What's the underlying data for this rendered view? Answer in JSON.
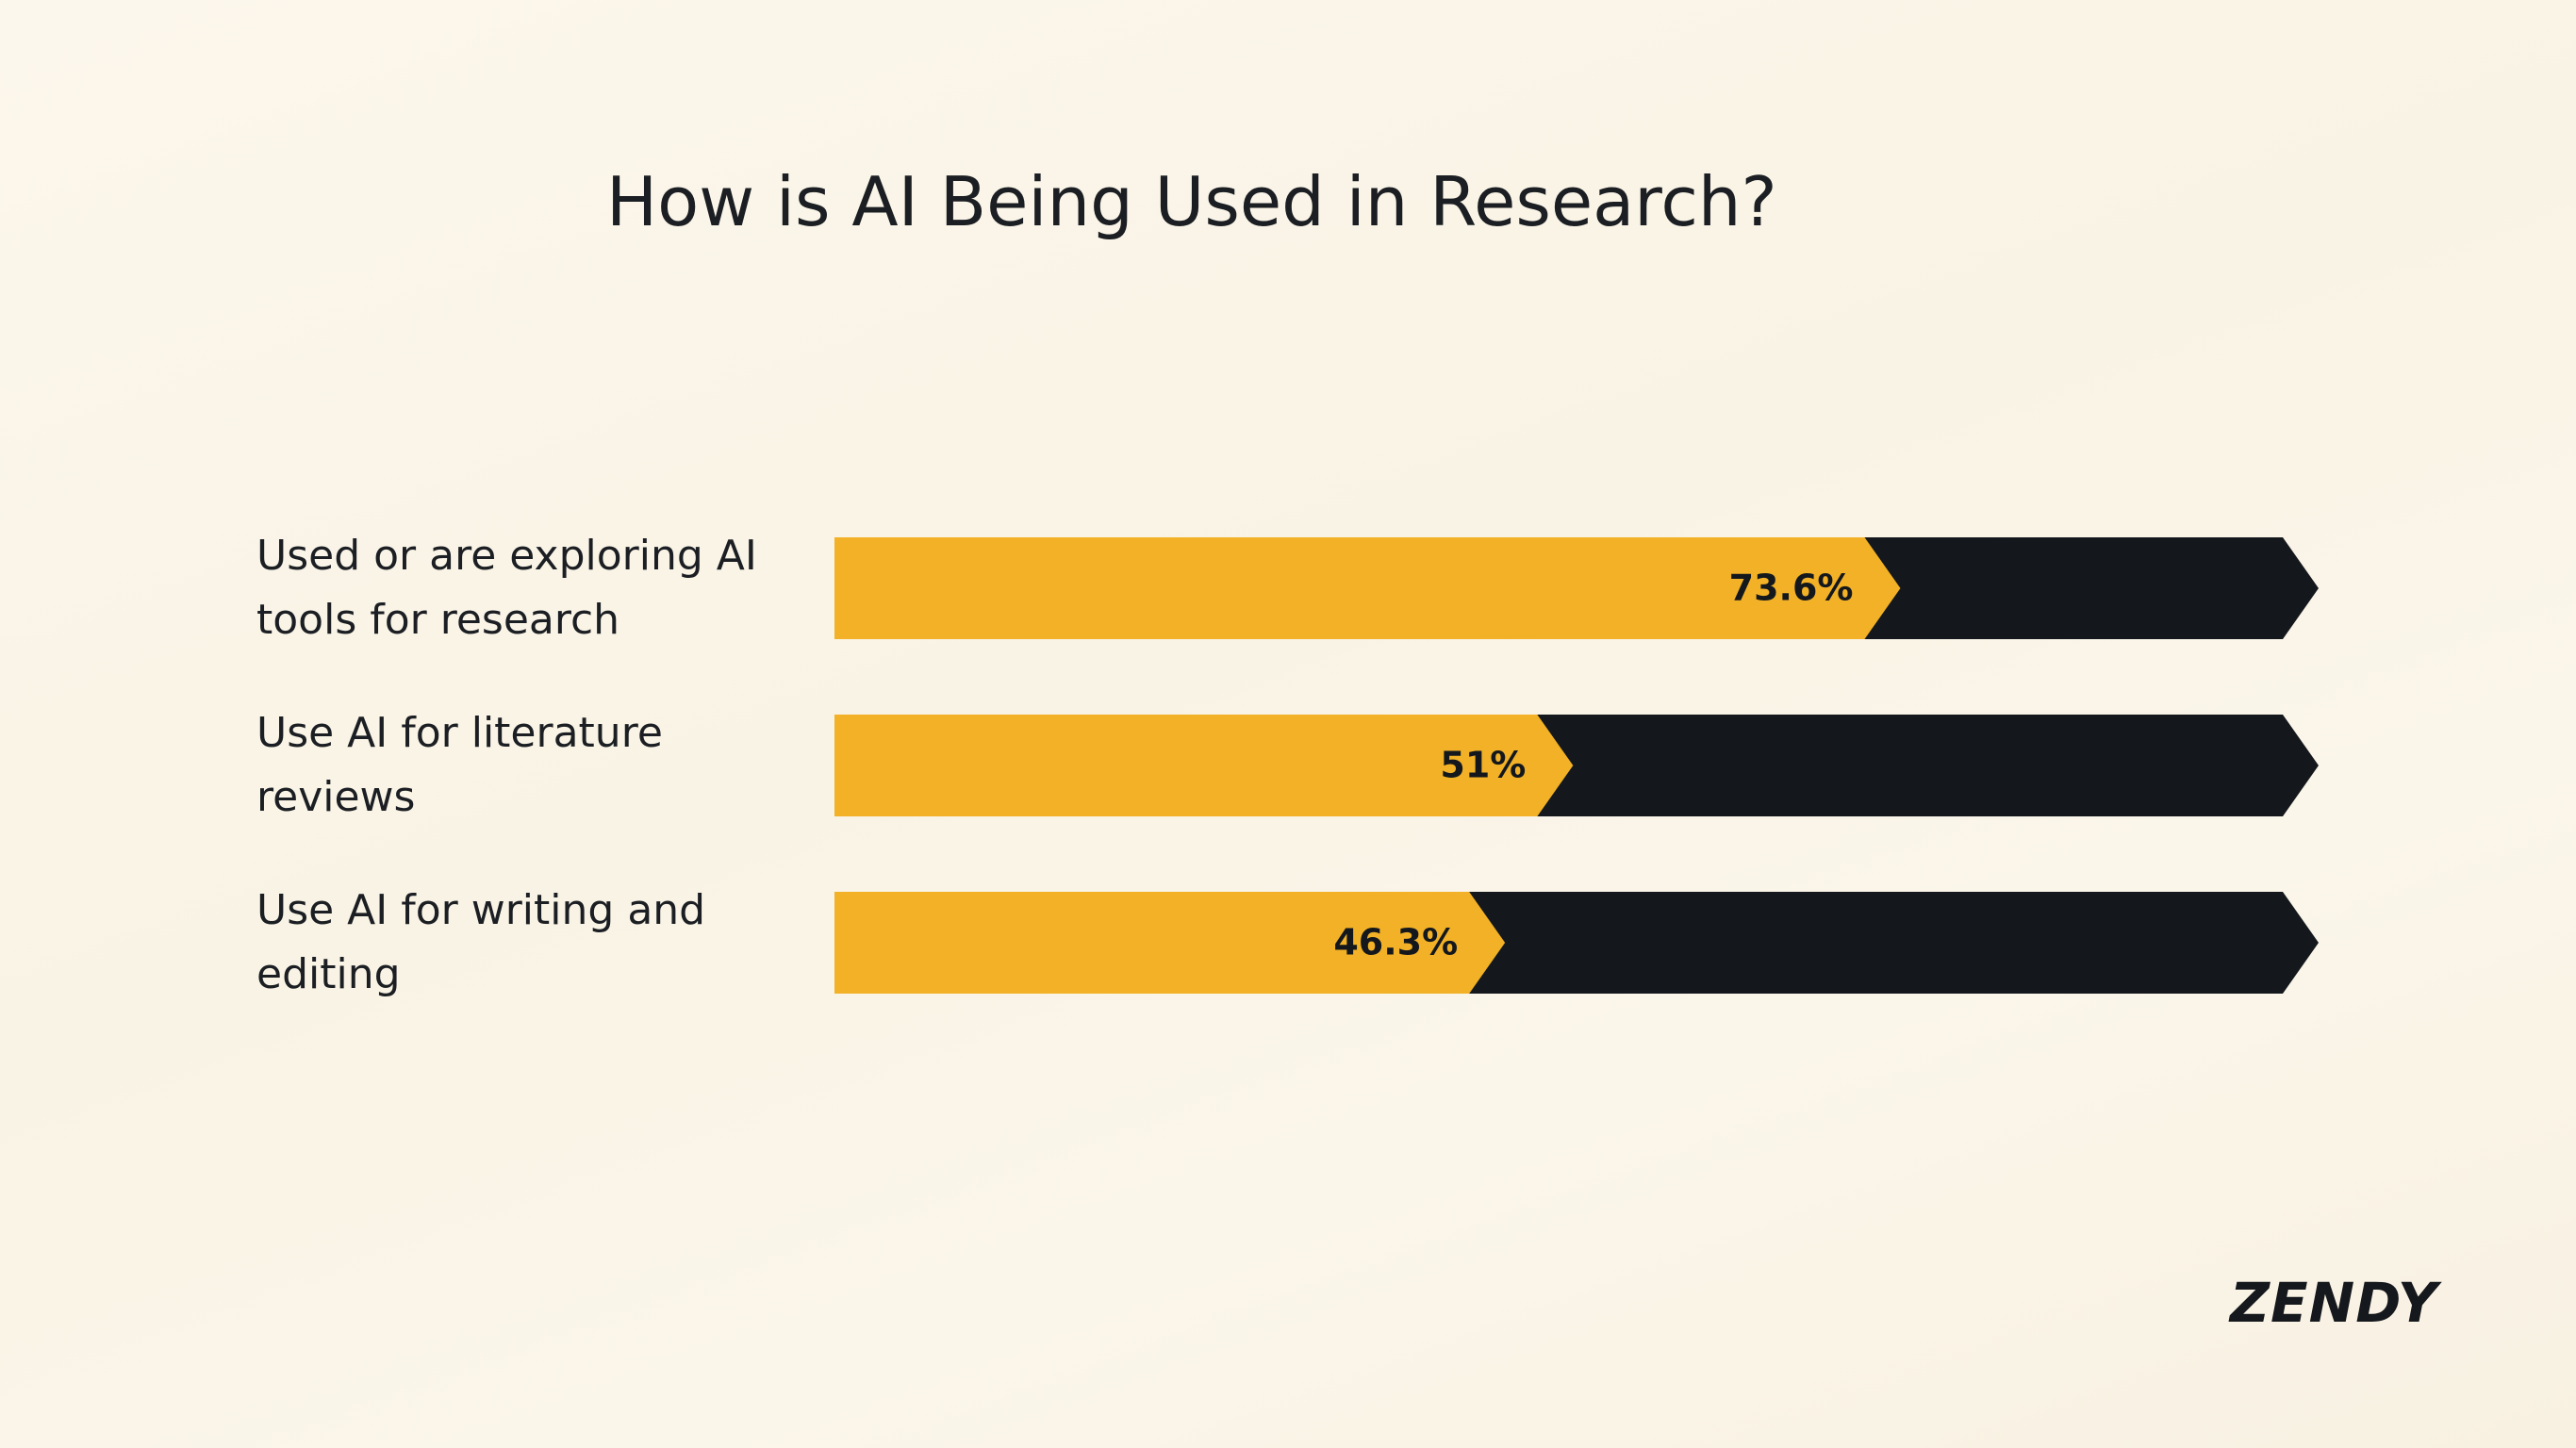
{
  "chart_data": {
    "type": "bar",
    "title": "How is AI Being Used in Research?",
    "categories": [
      "Used or are exploring AI tools for research",
      "Use AI for literature reviews",
      "Use AI for writing and editing"
    ],
    "values": [
      73.6,
      51,
      46.3
    ],
    "value_labels": [
      "73.6%",
      "51%",
      "46.3%"
    ],
    "color": "#f2b126",
    "track_color": "#14181d",
    "xlim": [
      0,
      100
    ]
  },
  "brand": "ZENDY"
}
